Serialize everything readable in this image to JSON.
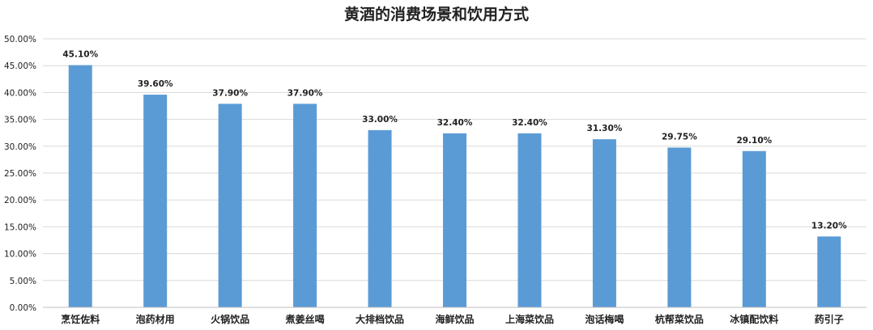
{
  "chart_data": {
    "type": "bar",
    "title": "黄酒的消费场景和饮用方式",
    "xlabel": "",
    "ylabel": "",
    "categories": [
      "烹饪佐料",
      "泡药材用",
      "火锅饮品",
      "煮姜丝喝",
      "大排档饮品",
      "海鲜饮品",
      "上海菜饮品",
      "泡话梅喝",
      "杭帮菜饮品",
      "冰镇配饮料",
      "药引子"
    ],
    "values": [
      45.1,
      39.6,
      37.9,
      37.9,
      33.0,
      32.4,
      32.4,
      31.3,
      29.75,
      29.1,
      13.2
    ],
    "data_labels": [
      "45.10%",
      "39.60%",
      "37.90%",
      "37.90%",
      "33.00%",
      "32.40%",
      "32.40%",
      "31.30%",
      "29.75%",
      "29.10%",
      "13.20%"
    ],
    "ylim": [
      0,
      50
    ],
    "yticks": [
      0,
      5,
      10,
      15,
      20,
      25,
      30,
      35,
      40,
      45,
      50
    ],
    "ytick_labels": [
      "0.00%",
      "5.00%",
      "10.00%",
      "15.00%",
      "20.00%",
      "25.00%",
      "30.00%",
      "35.00%",
      "40.00%",
      "45.00%",
      "50.00%"
    ],
    "grid": true,
    "legend": "none",
    "bar_color": "#5b9bd5"
  }
}
